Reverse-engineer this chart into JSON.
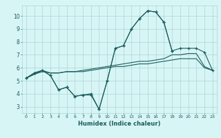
{
  "x": [
    0,
    1,
    2,
    3,
    4,
    5,
    6,
    7,
    8,
    9,
    10,
    11,
    12,
    13,
    14,
    15,
    16,
    17,
    18,
    19,
    20,
    21,
    22,
    23
  ],
  "line1": [
    5.2,
    5.6,
    5.8,
    5.4,
    4.3,
    4.5,
    3.8,
    3.9,
    3.9,
    2.8,
    5.0,
    7.5,
    7.7,
    9.0,
    9.8,
    10.4,
    10.3,
    9.5,
    7.3,
    null,
    null,
    null,
    null,
    null
  ],
  "line2": [
    5.2,
    5.6,
    5.8,
    5.4,
    4.3,
    4.5,
    3.8,
    3.9,
    4.0,
    2.8,
    5.0,
    7.5,
    7.7,
    9.0,
    9.8,
    10.4,
    10.3,
    9.5,
    7.3,
    7.5,
    7.5,
    7.5,
    7.2,
    5.8
  ],
  "line3": [
    5.2,
    5.5,
    5.8,
    5.6,
    5.6,
    5.7,
    5.7,
    5.8,
    5.9,
    6.0,
    6.1,
    6.2,
    6.3,
    6.4,
    6.5,
    6.5,
    6.6,
    6.7,
    7.0,
    7.0,
    7.1,
    7.1,
    6.1,
    5.8
  ],
  "line4": [
    5.2,
    5.5,
    5.7,
    5.6,
    5.6,
    5.7,
    5.7,
    5.7,
    5.8,
    5.9,
    6.0,
    6.1,
    6.1,
    6.2,
    6.3,
    6.3,
    6.4,
    6.5,
    6.6,
    6.7,
    6.7,
    6.7,
    6.0,
    5.8
  ],
  "line_color": "#1a5c5c",
  "bg_color": "#d8f5f5",
  "grid_color": "#aad4d4",
  "xlabel": "Humidex (Indice chaleur)",
  "ylim": [
    2.5,
    10.8
  ],
  "xlim": [
    -0.5,
    23.5
  ],
  "yticks": [
    3,
    4,
    5,
    6,
    7,
    8,
    9,
    10
  ],
  "xticks": [
    0,
    1,
    2,
    3,
    4,
    5,
    6,
    7,
    8,
    9,
    10,
    11,
    12,
    13,
    14,
    15,
    16,
    17,
    18,
    19,
    20,
    21,
    22,
    23
  ]
}
